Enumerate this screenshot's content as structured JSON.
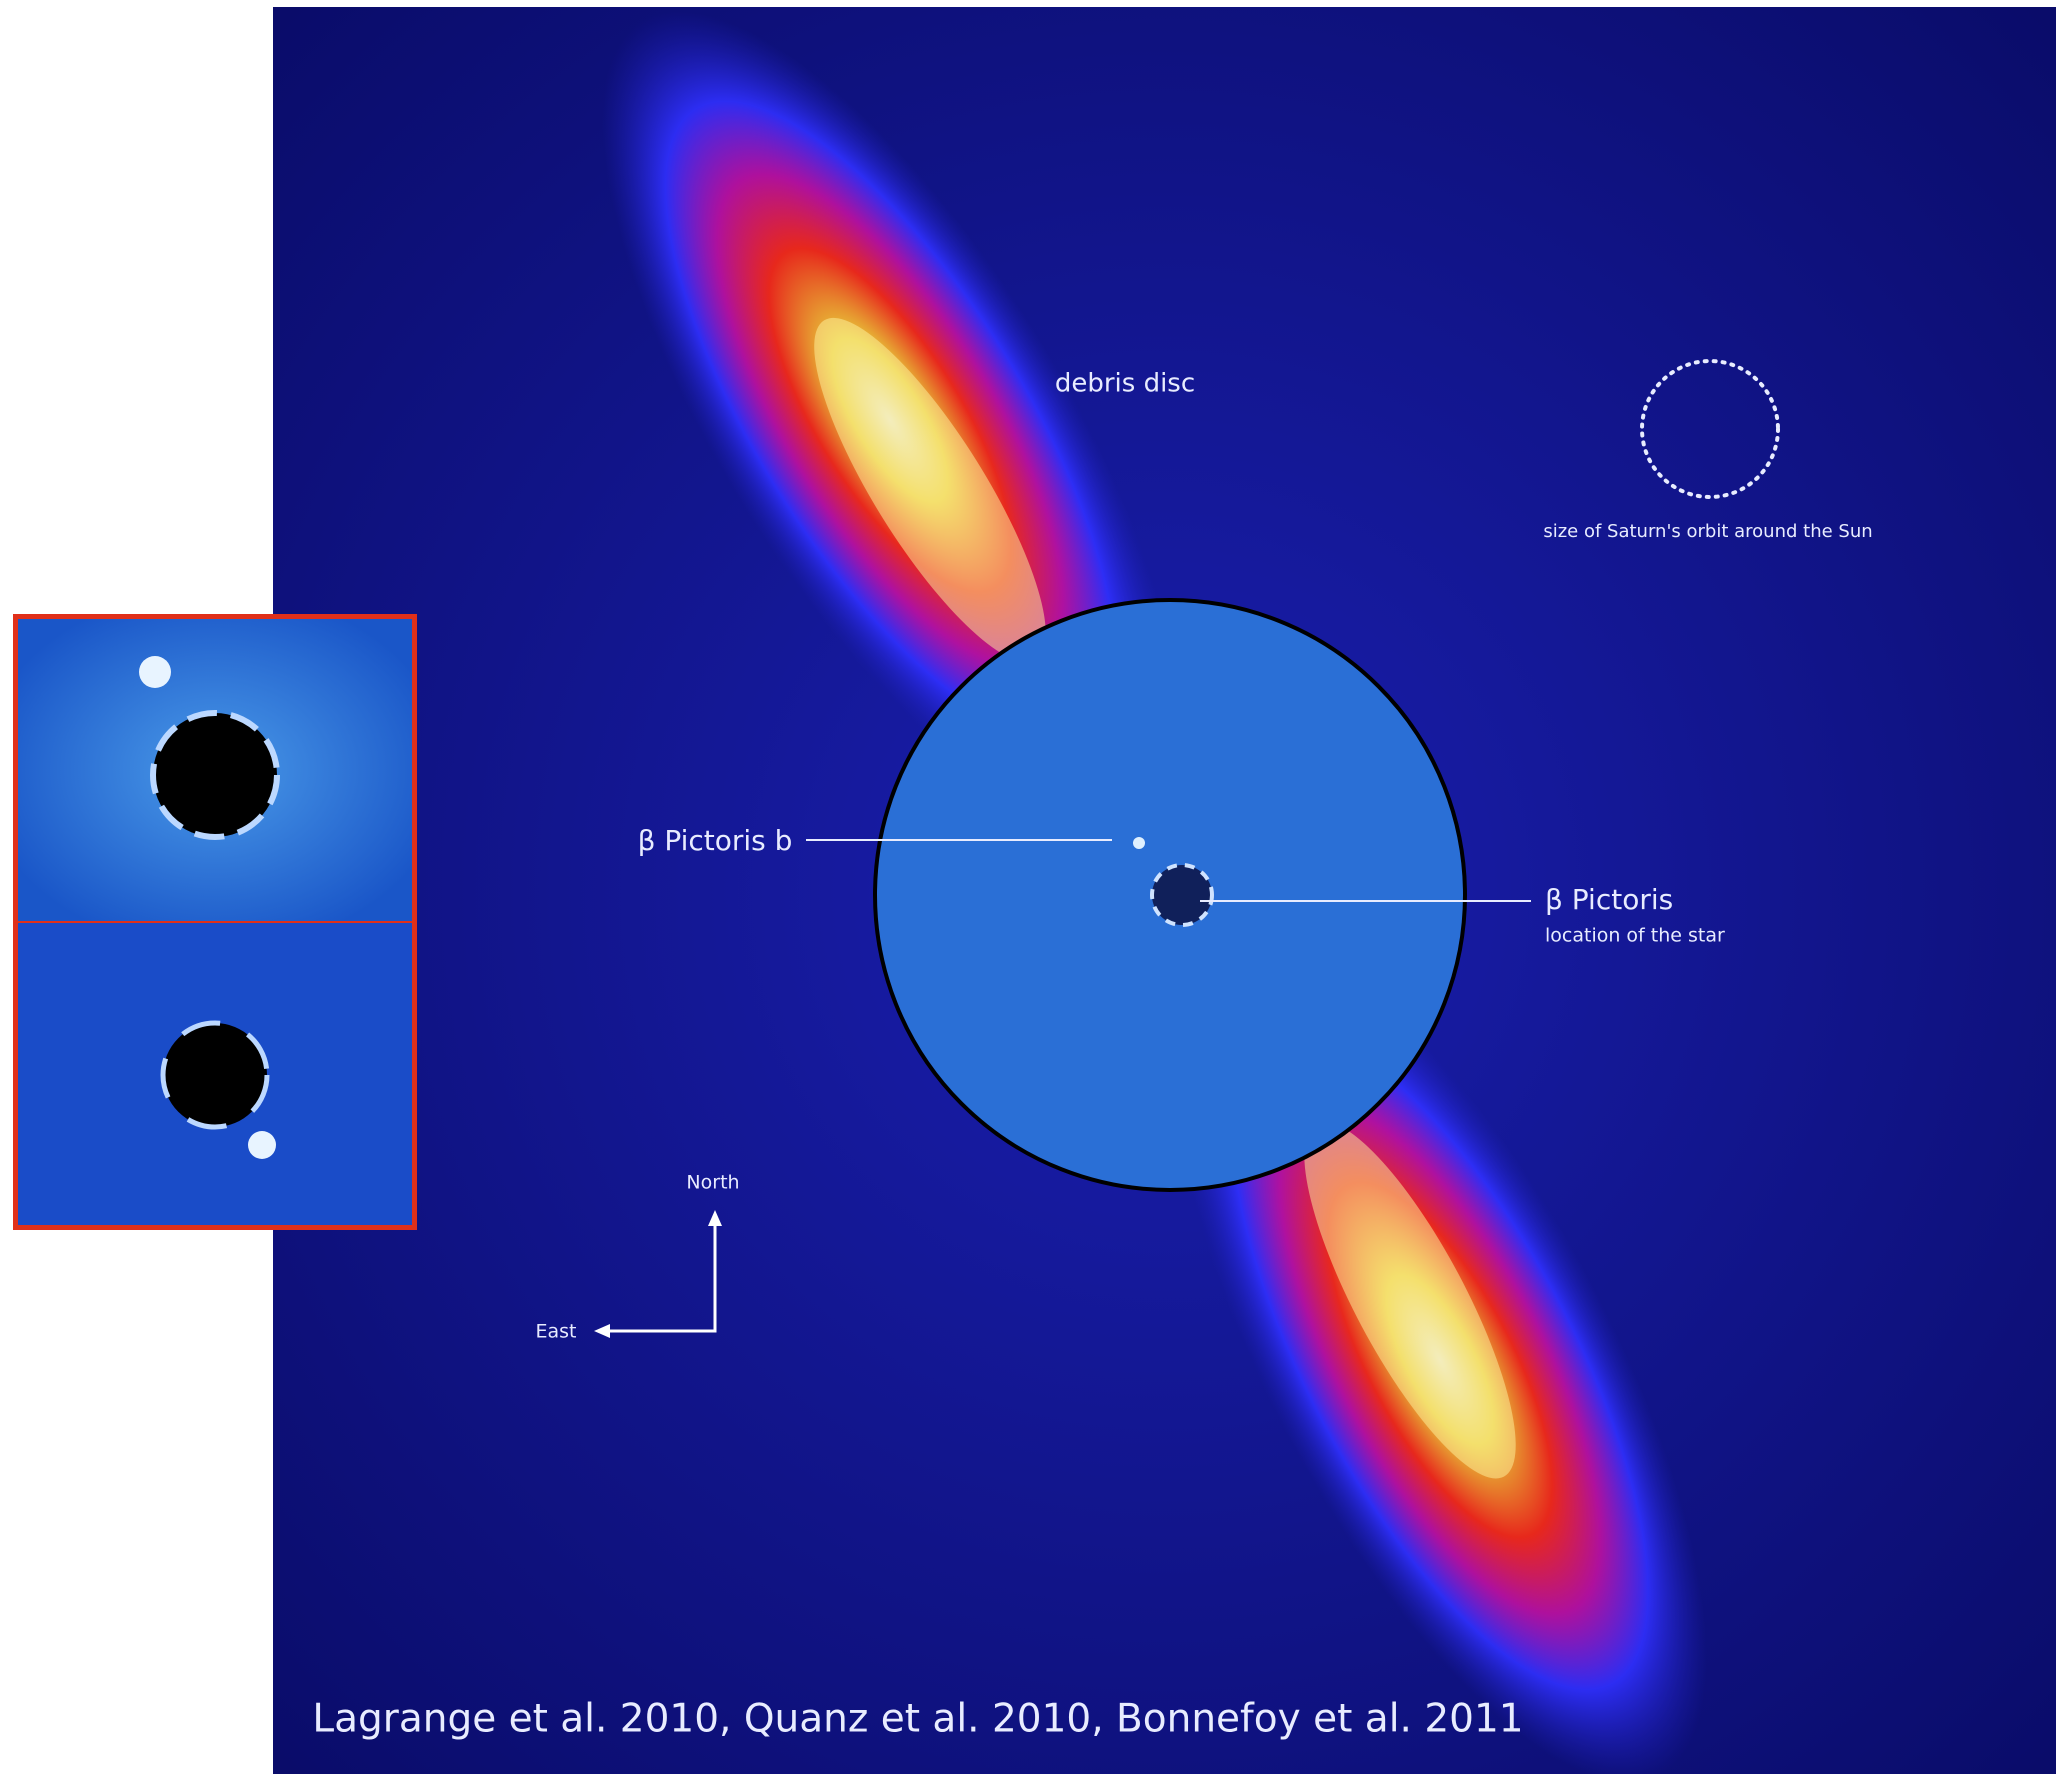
{
  "image": {
    "labels": {
      "debris": "debris disc",
      "saturn": "size of Saturn's orbit around the Sun",
      "planet": "β Pictoris b",
      "star": "β Pictoris",
      "star_note": "location of the star",
      "north": "North",
      "east": "East"
    },
    "citation": "Lagrange et al. 2010, Quanz et al. 2010, Bonnefoy et al. 2011"
  }
}
